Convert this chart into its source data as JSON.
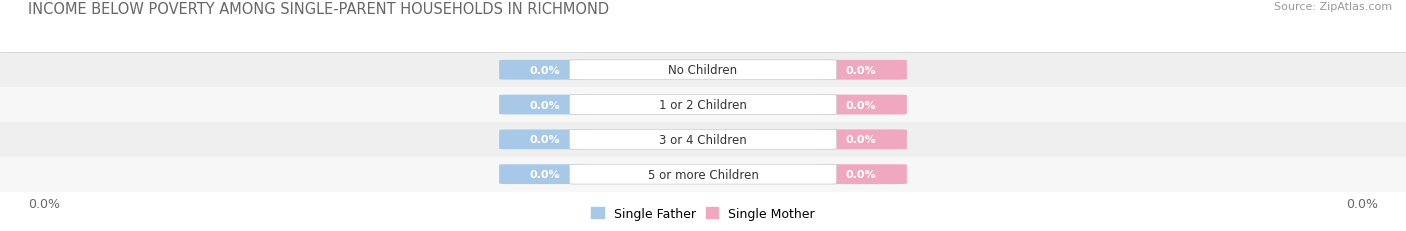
{
  "title": "INCOME BELOW POVERTY AMONG SINGLE-PARENT HOUSEHOLDS IN RICHMOND",
  "source": "Source: ZipAtlas.com",
  "categories": [
    "No Children",
    "1 or 2 Children",
    "3 or 4 Children",
    "5 or more Children"
  ],
  "single_father_values": [
    0.0,
    0.0,
    0.0,
    0.0
  ],
  "single_mother_values": [
    0.0,
    0.0,
    0.0,
    0.0
  ],
  "father_color": "#a8c8e8",
  "mother_color": "#f0a8c0",
  "row_bg_colors": [
    "#efefef",
    "#f7f7f7",
    "#efefef",
    "#f7f7f7"
  ],
  "title_fontsize": 10.5,
  "source_fontsize": 8,
  "axis_label_fontsize": 9,
  "legend_fontsize": 9,
  "x_axis_label_left": "0.0%",
  "x_axis_label_right": "0.0%",
  "background_color": "#ffffff",
  "legend_father": "Single Father",
  "legend_mother": "Single Mother"
}
